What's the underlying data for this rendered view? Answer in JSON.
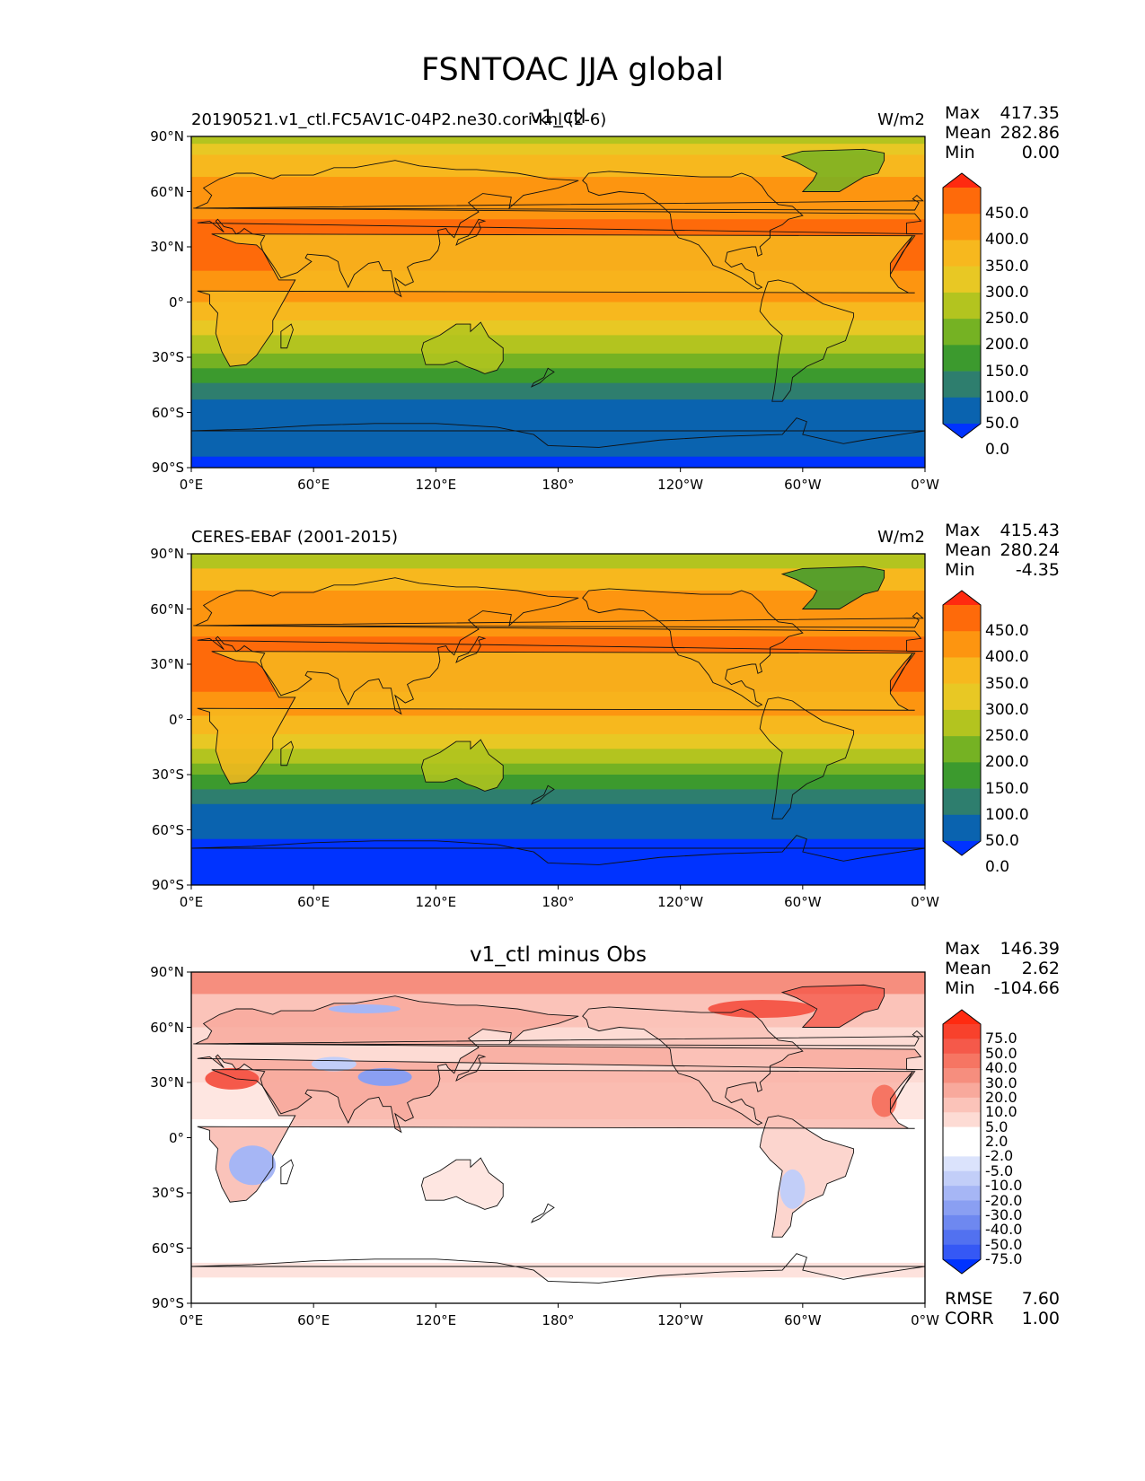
{
  "title": "FSNTOAC JJA global",
  "lat_ticks": [
    "90°N",
    "60°N",
    "30°N",
    "0°",
    "30°S",
    "60°S",
    "90°S"
  ],
  "lon_ticks": [
    "0°E",
    "60°E",
    "120°E",
    "180°",
    "120°W",
    "60°W",
    "0°W"
  ],
  "panels": [
    {
      "left_text": "20190521.v1_ctl.FC5AV1C-04P2.ne30.cori-knl (2-6)",
      "center_text": "v1_ctl",
      "units": "W/m2",
      "stats": {
        "max_label": "Max",
        "max": "417.35",
        "mean_label": "Mean",
        "mean": "282.86",
        "min_label": "Min",
        "min": "0.00"
      },
      "colorbar": {
        "levels": [
          "450.0",
          "400.0",
          "350.0",
          "300.0",
          "250.0",
          "200.0",
          "150.0",
          "100.0",
          "50.0",
          "0.0"
        ],
        "colors": [
          "#ff2a10",
          "#fe6a0a",
          "#fd9510",
          "#f7b81e",
          "#e8c824",
          "#b3c41f",
          "#75b223",
          "#3c9a2e",
          "#2e7e6e",
          "#0a63af",
          "#0033ff"
        ]
      }
    },
    {
      "left_text": "CERES-EBAF (2001-2015)",
      "center_text": "",
      "units": "W/m2",
      "stats": {
        "max_label": "Max",
        "max": "415.43",
        "mean_label": "Mean",
        "mean": "280.24",
        "min_label": "Min",
        "min": "-4.35"
      },
      "colorbar": {
        "levels": [
          "450.0",
          "400.0",
          "350.0",
          "300.0",
          "250.0",
          "200.0",
          "150.0",
          "100.0",
          "50.0",
          "0.0"
        ],
        "colors": [
          "#ff2a10",
          "#fe6a0a",
          "#fd9510",
          "#f7b81e",
          "#e8c824",
          "#b3c41f",
          "#75b223",
          "#3c9a2e",
          "#2e7e6e",
          "#0a63af",
          "#0033ff"
        ]
      }
    },
    {
      "left_text": "",
      "center_text": "v1_ctl minus Obs",
      "units": "",
      "stats": {
        "max_label": "Max",
        "max": "146.39",
        "mean_label": "Mean",
        "mean": "2.62",
        "min_label": "Min",
        "min": "-104.66"
      },
      "colorbar": {
        "levels": [
          "75.0",
          "50.0",
          "40.0",
          "30.0",
          "20.0",
          "10.0",
          "5.0",
          "2.0",
          "-2.0",
          "-5.0",
          "-10.0",
          "-20.0",
          "-30.0",
          "-40.0",
          "-50.0",
          "-75.0"
        ],
        "colors": [
          "#ff2a10",
          "#f8412c",
          "#f5594a",
          "#f67563",
          "#f68e7e",
          "#f8a99c",
          "#fbc3b9",
          "#fddbd4",
          "#ffffff",
          "#ffffff",
          "#dbe3fc",
          "#c2cef8",
          "#a6b6f5",
          "#8a9ff2",
          "#6e88f0",
          "#5271f0",
          "#3558f5",
          "#0033ff"
        ]
      },
      "extra_stats": {
        "rmse_label": "RMSE",
        "rmse": "7.60",
        "corr_label": "CORR",
        "corr": "1.00"
      }
    }
  ]
}
